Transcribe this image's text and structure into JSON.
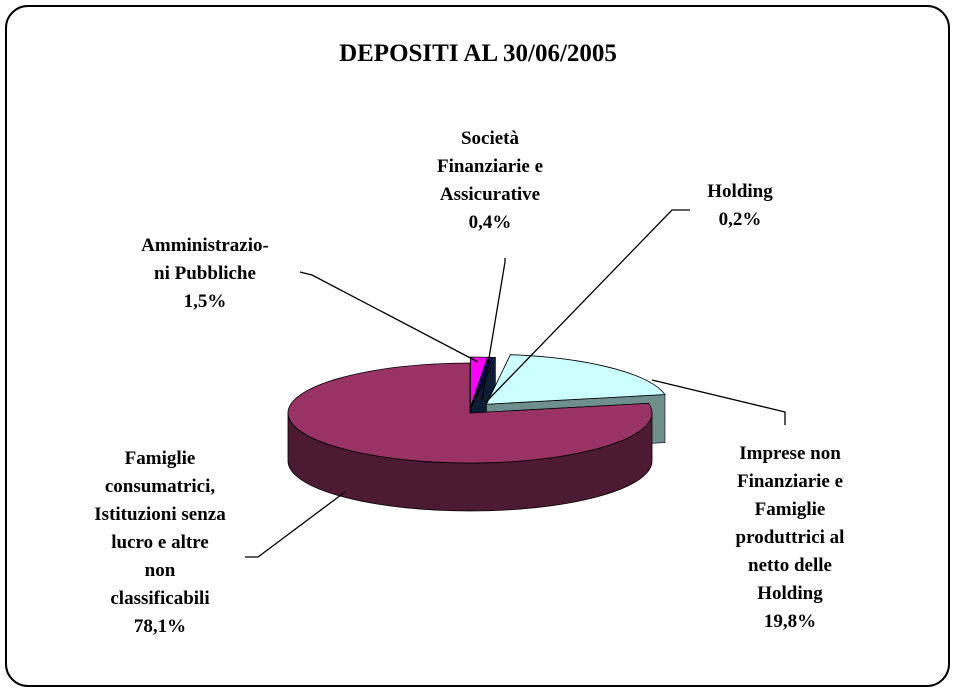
{
  "chart_data": {
    "type": "pie3d",
    "title": "DEPOSITI AL 30/06/2005",
    "categories": [
      "Amministrazio-\nni Pubbliche",
      "Società\nFinanziarie e\nAssicurative",
      "Holding",
      "Imprese non\nFinanziarie e\nFamiglie\nproduttrici al\nnetto delle\nHolding",
      "Famiglie\nconsumatrici,\nIstituzioni senza\nlucro e altre\nnon\nclassificabili"
    ],
    "values": [
      1.5,
      0.4,
      0.2,
      19.8,
      78.1
    ],
    "value_labels": [
      "1,5%",
      "0,4%",
      "0,2%",
      "19,8%",
      "78,1%"
    ],
    "colors": [
      "#ff00ff",
      "#000080",
      "#1a3a6a",
      "#ccffff",
      "#993366"
    ],
    "side_colors": [
      "#990099",
      "#000050",
      "#0d1d35",
      "#6f8f8f",
      "#4d1a33"
    ]
  }
}
